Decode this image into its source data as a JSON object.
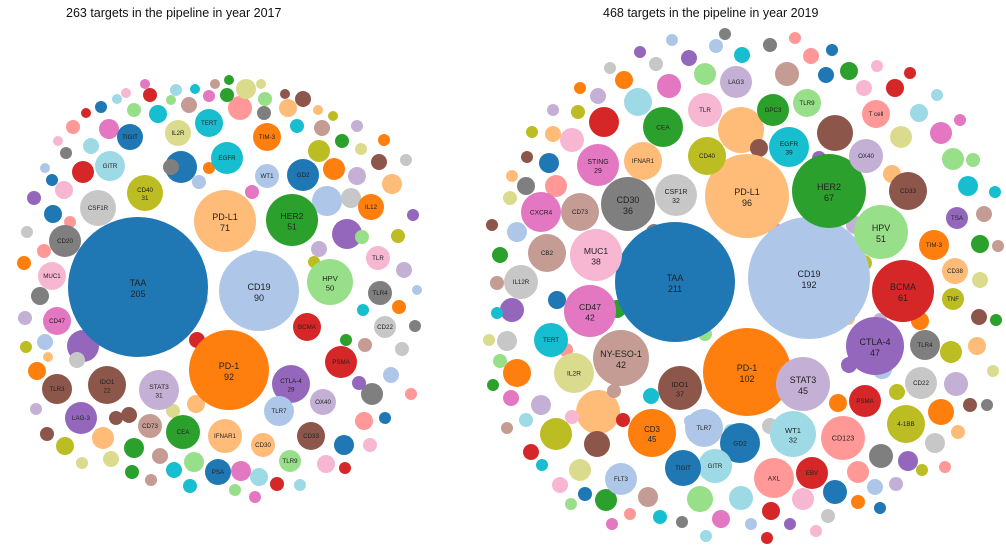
{
  "chart_data": [
    {
      "type": "bubble",
      "title": "263 targets in the pipeline in year 2017",
      "bubbles": [
        {
          "label": "TAA",
          "value": 205,
          "color": "#1f77b4"
        },
        {
          "label": "CD19",
          "value": 90,
          "color": "#aec7e8"
        },
        {
          "label": "PD-1",
          "value": 92,
          "color": "#ff7f0e"
        },
        {
          "label": "PD-L1",
          "value": 71,
          "color": "#ffbb78"
        },
        {
          "label": "HER2",
          "value": 51,
          "color": "#2ca02c"
        },
        {
          "label": "HPV",
          "value": 50,
          "color": "#98df8a"
        },
        {
          "label": "CTLA-4",
          "value": 29,
          "color": "#9467bd"
        },
        {
          "label": "STAT3",
          "value": 31,
          "color": "#c5b0d5"
        },
        {
          "label": "IDO1",
          "value": 22,
          "color": "#8c564b"
        },
        {
          "label": "CD40",
          "value": 31,
          "color": "#bcbd22"
        },
        {
          "label": "CSF1R",
          "color": "#c7c7c7"
        },
        {
          "label": "CD20",
          "color": "#7f7f7f"
        },
        {
          "label": "GITR",
          "color": "#9edae5"
        },
        {
          "label": "TIGIT",
          "color": "#1f77b4"
        },
        {
          "label": "IL2R",
          "color": "#dbdb8d"
        },
        {
          "label": "TERT",
          "color": "#17becf"
        },
        {
          "label": "TIM-3",
          "color": "#ff7f0e"
        },
        {
          "label": "EGFR",
          "color": "#17becf"
        },
        {
          "label": "WT1",
          "color": "#aec7e8"
        },
        {
          "label": "GD2",
          "color": "#1f77b4"
        },
        {
          "label": "IL12",
          "color": "#ff7f0e"
        },
        {
          "label": "TLR",
          "color": "#f7b6d2"
        },
        {
          "label": "TLR4",
          "color": "#7f7f7f"
        },
        {
          "label": "CD22",
          "color": "#c7c7c7"
        },
        {
          "label": "BCMA",
          "color": "#d62728"
        },
        {
          "label": "PSMA",
          "color": "#d62728"
        },
        {
          "label": "OX40",
          "color": "#c5b0d5"
        },
        {
          "label": "TLR7",
          "color": "#aec7e8"
        },
        {
          "label": "CD33",
          "color": "#8c564b"
        },
        {
          "label": "TLR9",
          "color": "#98df8a"
        },
        {
          "label": "CD30",
          "color": "#ffbb78"
        },
        {
          "label": "IFNAR1",
          "color": "#ffbb78"
        },
        {
          "label": "PSA",
          "color": "#1f77b4"
        },
        {
          "label": "CEA",
          "color": "#2ca02c"
        },
        {
          "label": "CD73",
          "color": "#c49c94"
        },
        {
          "label": "LAG-3",
          "color": "#9467bd"
        },
        {
          "label": "TLR3",
          "color": "#8c564b"
        },
        {
          "label": "CD47",
          "color": "#e377c2"
        },
        {
          "label": "MUC1",
          "color": "#f7b6d2"
        }
      ]
    },
    {
      "type": "bubble",
      "title": "468 targets in the pipeline in year 2019",
      "bubbles": [
        {
          "label": "TAA",
          "value": 211,
          "color": "#1f77b4"
        },
        {
          "label": "CD19",
          "value": 192,
          "color": "#aec7e8"
        },
        {
          "label": "PD-1",
          "value": 102,
          "color": "#ff7f0e"
        },
        {
          "label": "PD-L1",
          "value": 96,
          "color": "#ffbb78"
        },
        {
          "label": "HER2",
          "value": 67,
          "color": "#2ca02c"
        },
        {
          "label": "HPV",
          "value": 51,
          "color": "#98df8a"
        },
        {
          "label": "BCMA",
          "value": 61,
          "color": "#d62728"
        },
        {
          "label": "CTLA-4",
          "value": 47,
          "color": "#9467bd"
        },
        {
          "label": "STAT3",
          "value": 45,
          "color": "#c5b0d5"
        },
        {
          "label": "CD3",
          "value": 45,
          "color": "#ff7f0e"
        },
        {
          "label": "IDO1",
          "value": 37,
          "color": "#8c564b"
        },
        {
          "label": "NY-ESO-1",
          "value": 42,
          "color": "#c49c94"
        },
        {
          "label": "CD47",
          "value": 42,
          "color": "#e377c2"
        },
        {
          "label": "MUC1",
          "value": 38,
          "color": "#f7b6d2"
        },
        {
          "label": "CD30",
          "value": 36,
          "color": "#7f7f7f"
        },
        {
          "label": "CSF1R",
          "value": 32,
          "color": "#c7c7c7"
        },
        {
          "label": "WT1",
          "value": 32,
          "color": "#9edae5"
        },
        {
          "label": "STING",
          "value": 29,
          "color": "#e377c2"
        },
        {
          "label": "EGFR",
          "value": 39,
          "color": "#17becf"
        },
        {
          "label": "CEA",
          "color": "#2ca02c"
        },
        {
          "label": "CD40",
          "color": "#bcbd22"
        },
        {
          "label": "IFNAR1",
          "color": "#ffbb78"
        },
        {
          "label": "TLR",
          "color": "#f7b6d2"
        },
        {
          "label": "LAG3",
          "color": "#c5b0d5"
        },
        {
          "label": "GPC3",
          "color": "#2ca02c"
        },
        {
          "label": "TLR9",
          "color": "#98df8a"
        },
        {
          "label": "T cell",
          "color": "#ff9896"
        },
        {
          "label": "OX40",
          "color": "#c5b0d5"
        },
        {
          "label": "CD33",
          "color": "#8c564b"
        },
        {
          "label": "TSA",
          "color": "#9467bd"
        },
        {
          "label": "TIM-3",
          "color": "#ff7f0e"
        },
        {
          "label": "CD38",
          "color": "#ffbb78"
        },
        {
          "label": "TNF",
          "color": "#bcbd22"
        },
        {
          "label": "TLR4",
          "color": "#7f7f7f"
        },
        {
          "label": "CD22",
          "color": "#c7c7c7"
        },
        {
          "label": "4-1BB",
          "color": "#bcbd22"
        },
        {
          "label": "PSMA",
          "color": "#d62728"
        },
        {
          "label": "CD123",
          "color": "#ff9896"
        },
        {
          "label": "EBV",
          "color": "#d62728"
        },
        {
          "label": "AXL",
          "color": "#ff9896"
        },
        {
          "label": "GD2",
          "color": "#1f77b4"
        },
        {
          "label": "GITR",
          "color": "#9edae5"
        },
        {
          "label": "TIGIT",
          "color": "#1f77b4"
        },
        {
          "label": "FLT3",
          "color": "#aec7e8"
        },
        {
          "label": "TLR7",
          "color": "#aec7e8"
        },
        {
          "label": "IL2R",
          "color": "#dbdb8d"
        },
        {
          "label": "TERT",
          "color": "#17becf"
        },
        {
          "label": "IL12R",
          "color": "#c7c7c7"
        },
        {
          "label": "CB2",
          "color": "#c49c94"
        },
        {
          "label": "CXCR4",
          "color": "#e377c2"
        },
        {
          "label": "CD73",
          "color": "#c49c94"
        }
      ]
    }
  ],
  "filler_palette": [
    "#1f77b4",
    "#aec7e8",
    "#ff7f0e",
    "#ffbb78",
    "#2ca02c",
    "#98df8a",
    "#d62728",
    "#ff9896",
    "#9467bd",
    "#c5b0d5",
    "#8c564b",
    "#c49c94",
    "#e377c2",
    "#f7b6d2",
    "#7f7f7f",
    "#c7c7c7",
    "#bcbd22",
    "#dbdb8d",
    "#17becf",
    "#9edae5"
  ]
}
